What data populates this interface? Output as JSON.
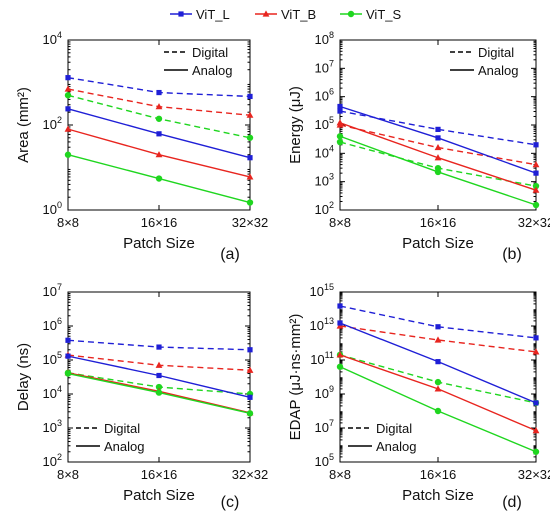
{
  "legend": {
    "series": [
      {
        "name": "ViT_L",
        "color": "#1f1fd6",
        "marker": "square"
      },
      {
        "name": "ViT_B",
        "color": "#e8251f",
        "marker": "triangle"
      },
      {
        "name": "ViT_S",
        "color": "#1fd61f",
        "marker": "circle"
      }
    ]
  },
  "chart_data": [
    {
      "type": "line",
      "panel_label": "(a)",
      "xlabel": "Patch Size",
      "ylabel": "Area (mm²)",
      "categories": [
        "8×8",
        "16×16",
        "32×32"
      ],
      "ylim": [
        1,
        10000
      ],
      "yscale": "log",
      "yticks": [
        {
          "value": 1,
          "exp": "0"
        },
        {
          "value": 100,
          "exp": "2"
        },
        {
          "value": 10000,
          "exp": "4"
        }
      ],
      "line_legend": {
        "placement": "top-right",
        "digital": "Digital",
        "analog": "Analog"
      },
      "series": [
        {
          "name": "ViT_L",
          "style": "dashed",
          "values": [
            1300,
            580,
            470
          ]
        },
        {
          "name": "ViT_B",
          "style": "dashed",
          "values": [
            700,
            270,
            170
          ]
        },
        {
          "name": "ViT_S",
          "style": "dashed",
          "values": [
            500,
            140,
            50
          ]
        },
        {
          "name": "ViT_L",
          "style": "solid",
          "values": [
            240,
            62,
            17
          ]
        },
        {
          "name": "ViT_B",
          "style": "solid",
          "values": [
            80,
            20,
            6
          ]
        },
        {
          "name": "ViT_S",
          "style": "solid",
          "values": [
            20,
            5.5,
            1.5
          ]
        }
      ]
    },
    {
      "type": "line",
      "panel_label": "(b)",
      "xlabel": "Patch Size",
      "ylabel": "Energy (μJ)",
      "categories": [
        "8×8",
        "16×16",
        "32×32"
      ],
      "ylim": [
        100,
        100000000
      ],
      "yscale": "log",
      "yticks": [
        {
          "value": 100,
          "exp": "2"
        },
        {
          "value": 1000,
          "exp": "3"
        },
        {
          "value": 10000,
          "exp": "4"
        },
        {
          "value": 100000,
          "exp": "5"
        },
        {
          "value": 1000000,
          "exp": "6"
        },
        {
          "value": 10000000,
          "exp": "7"
        },
        {
          "value": 100000000,
          "exp": "8"
        }
      ],
      "line_legend": {
        "placement": "top-right",
        "digital": "Digital",
        "analog": "Analog"
      },
      "series": [
        {
          "name": "ViT_L",
          "style": "dashed",
          "values": [
            310000,
            70000,
            20000
          ]
        },
        {
          "name": "ViT_B",
          "style": "dashed",
          "values": [
            100000,
            16000,
            4000
          ]
        },
        {
          "name": "ViT_S",
          "style": "dashed",
          "values": [
            25000,
            3000,
            700
          ]
        },
        {
          "name": "ViT_L",
          "style": "solid",
          "values": [
            450000,
            35000,
            2000
          ]
        },
        {
          "name": "ViT_B",
          "style": "solid",
          "values": [
            120000,
            7000,
            500
          ]
        },
        {
          "name": "ViT_S",
          "style": "solid",
          "values": [
            40000,
            2200,
            150
          ]
        }
      ]
    },
    {
      "type": "line",
      "panel_label": "(c)",
      "xlabel": "Patch Size",
      "ylabel": "Delay (ns)",
      "categories": [
        "8×8",
        "16×16",
        "32×32"
      ],
      "ylim": [
        100,
        10000000
      ],
      "yscale": "log",
      "yticks": [
        {
          "value": 100,
          "exp": "2"
        },
        {
          "value": 1000,
          "exp": "3"
        },
        {
          "value": 10000,
          "exp": "4"
        },
        {
          "value": 100000,
          "exp": "5"
        },
        {
          "value": 1000000,
          "exp": "6"
        },
        {
          "value": 10000000,
          "exp": "7"
        }
      ],
      "line_legend": {
        "placement": "bottom-left",
        "digital": "Digital",
        "analog": "Analog"
      },
      "series": [
        {
          "name": "ViT_L",
          "style": "dashed",
          "values": [
            380000,
            240000,
            200000
          ]
        },
        {
          "name": "ViT_B",
          "style": "dashed",
          "values": [
            140000,
            70000,
            50000
          ]
        },
        {
          "name": "ViT_S",
          "style": "dashed",
          "values": [
            42000,
            16000,
            10000
          ]
        },
        {
          "name": "ViT_L",
          "style": "solid",
          "values": [
            130000,
            35000,
            8000
          ]
        },
        {
          "name": "ViT_B",
          "style": "solid",
          "values": [
            42000,
            12000,
            2800
          ]
        },
        {
          "name": "ViT_S",
          "style": "solid",
          "values": [
            40000,
            11000,
            2700
          ]
        }
      ]
    },
    {
      "type": "line",
      "panel_label": "(d)",
      "xlabel": "Patch Size",
      "ylabel": "EDAP (μJ·ns·mm²)",
      "categories": [
        "8×8",
        "16×16",
        "32×32"
      ],
      "ylim": [
        100000,
        1000000000000000
      ],
      "yscale": "log",
      "yticks": [
        {
          "value": 100000,
          "exp": "5"
        },
        {
          "value": 10000000,
          "exp": "7"
        },
        {
          "value": 1000000000,
          "exp": "9"
        },
        {
          "value": 100000000000,
          "exp": "11"
        },
        {
          "value": 10000000000000,
          "exp": "13"
        },
        {
          "value": 1000000000000000,
          "exp": "15"
        }
      ],
      "line_legend": {
        "placement": "bottom-right",
        "digital": "Digital",
        "analog": "Analog"
      },
      "series": [
        {
          "name": "ViT_L",
          "style": "dashed",
          "values": [
            150000000000000.0,
            9000000000000.0,
            2000000000000.0
          ]
        },
        {
          "name": "ViT_B",
          "style": "dashed",
          "values": [
            10000000000000.0,
            1500000000000.0,
            300000000000.0
          ]
        },
        {
          "name": "ViT_S",
          "style": "dashed",
          "values": [
            200000000000.0,
            5000000000.0,
            300000000.0
          ]
        },
        {
          "name": "ViT_L",
          "style": "solid",
          "values": [
            15000000000000.0,
            80000000000.0,
            300000000.0
          ]
        },
        {
          "name": "ViT_B",
          "style": "solid",
          "values": [
            200000000000.0,
            2000000000.0,
            7000000.0
          ]
        },
        {
          "name": "ViT_S",
          "style": "solid",
          "values": [
            40000000000.0,
            100000000.0,
            400000.0
          ]
        }
      ]
    }
  ]
}
